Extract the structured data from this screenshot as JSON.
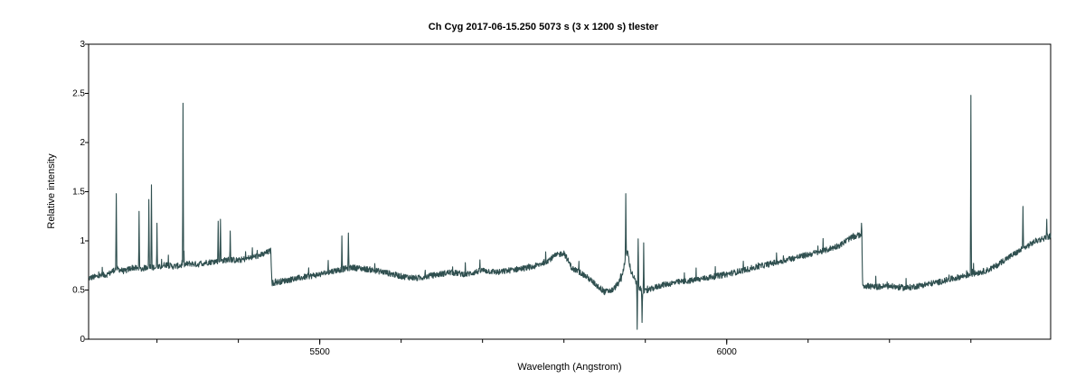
{
  "chart_data": {
    "type": "line",
    "title": "Ch Cyg  2017-06-15.250  5073 s (3 x 1200 s)  tlester",
    "xlabel": "Wavelength (Angstrom)",
    "ylabel": "Relative intensity",
    "xlim": [
      5216,
      6398
    ],
    "ylim": [
      0,
      3
    ],
    "x_ticks": [
      5500,
      6000
    ],
    "y_ticks": [
      0,
      0.5,
      1,
      1.5,
      2,
      2.5,
      3
    ],
    "y_tick_labels": [
      "0",
      "0.5",
      "1",
      "1.5",
      "2",
      "2.5",
      "3"
    ],
    "grid": false,
    "line_color": "#2f4f4f",
    "series": [
      {
        "x": [
          5216,
          5240,
          5250,
          5260,
          5270,
          5280,
          5290,
          5300,
          5310,
          5320,
          5330,
          5340,
          5350,
          5360,
          5370,
          5380,
          5390,
          5400,
          5410,
          5420,
          5430,
          5440,
          5441,
          5460,
          5480,
          5500,
          5520,
          5540,
          5560,
          5580,
          5600,
          5620,
          5640,
          5660,
          5680,
          5700,
          5720,
          5740,
          5760,
          5770,
          5780,
          5790,
          5800,
          5810,
          5820,
          5830,
          5840,
          5850,
          5860,
          5870,
          5878,
          5882,
          5890,
          5895,
          5898,
          5905,
          5910,
          5920,
          5940,
          5960,
          5980,
          6000,
          6020,
          6040,
          6060,
          6080,
          6100,
          6120,
          6140,
          6150,
          6160,
          6166,
          6167,
          6180,
          6200,
          6220,
          6240,
          6260,
          6280,
          6300,
          6320,
          6330,
          6340,
          6360,
          6380,
          6398
        ],
        "y": [
          0.62,
          0.66,
          0.72,
          0.69,
          0.73,
          0.71,
          0.74,
          0.72,
          0.76,
          0.74,
          0.75,
          0.77,
          0.76,
          0.78,
          0.79,
          0.8,
          0.81,
          0.8,
          0.82,
          0.84,
          0.86,
          0.9,
          0.57,
          0.6,
          0.63,
          0.66,
          0.7,
          0.73,
          0.71,
          0.68,
          0.64,
          0.62,
          0.65,
          0.68,
          0.66,
          0.7,
          0.68,
          0.71,
          0.73,
          0.76,
          0.8,
          0.85,
          0.88,
          0.72,
          0.68,
          0.62,
          0.55,
          0.48,
          0.5,
          0.6,
          0.9,
          0.7,
          0.55,
          0.5,
          0.48,
          0.5,
          0.52,
          0.55,
          0.58,
          0.6,
          0.63,
          0.66,
          0.7,
          0.74,
          0.78,
          0.82,
          0.86,
          0.9,
          0.96,
          1.02,
          1.05,
          1.07,
          0.55,
          0.53,
          0.54,
          0.52,
          0.55,
          0.58,
          0.62,
          0.66,
          0.7,
          0.74,
          0.8,
          0.9,
          1.0,
          1.05
        ]
      }
    ],
    "spikes": [
      {
        "x": 5250,
        "y": 1.48
      },
      {
        "x": 5278,
        "y": 1.3
      },
      {
        "x": 5290,
        "y": 1.42
      },
      {
        "x": 5293,
        "y": 1.57
      },
      {
        "x": 5300,
        "y": 1.18
      },
      {
        "x": 5332,
        "y": 2.4
      },
      {
        "x": 5375,
        "y": 1.2
      },
      {
        "x": 5378,
        "y": 1.22
      },
      {
        "x": 5390,
        "y": 1.1
      },
      {
        "x": 5527,
        "y": 1.05
      },
      {
        "x": 5535,
        "y": 1.08
      },
      {
        "x": 5876,
        "y": 1.48
      },
      {
        "x": 5890,
        "y": 0.1
      },
      {
        "x": 5896,
        "y": 0.17
      },
      {
        "x": 5891,
        "y": 1.02
      },
      {
        "x": 5898,
        "y": 0.98
      },
      {
        "x": 6300,
        "y": 2.48
      },
      {
        "x": 6364,
        "y": 1.35
      },
      {
        "x": 6393,
        "y": 1.22
      }
    ]
  }
}
